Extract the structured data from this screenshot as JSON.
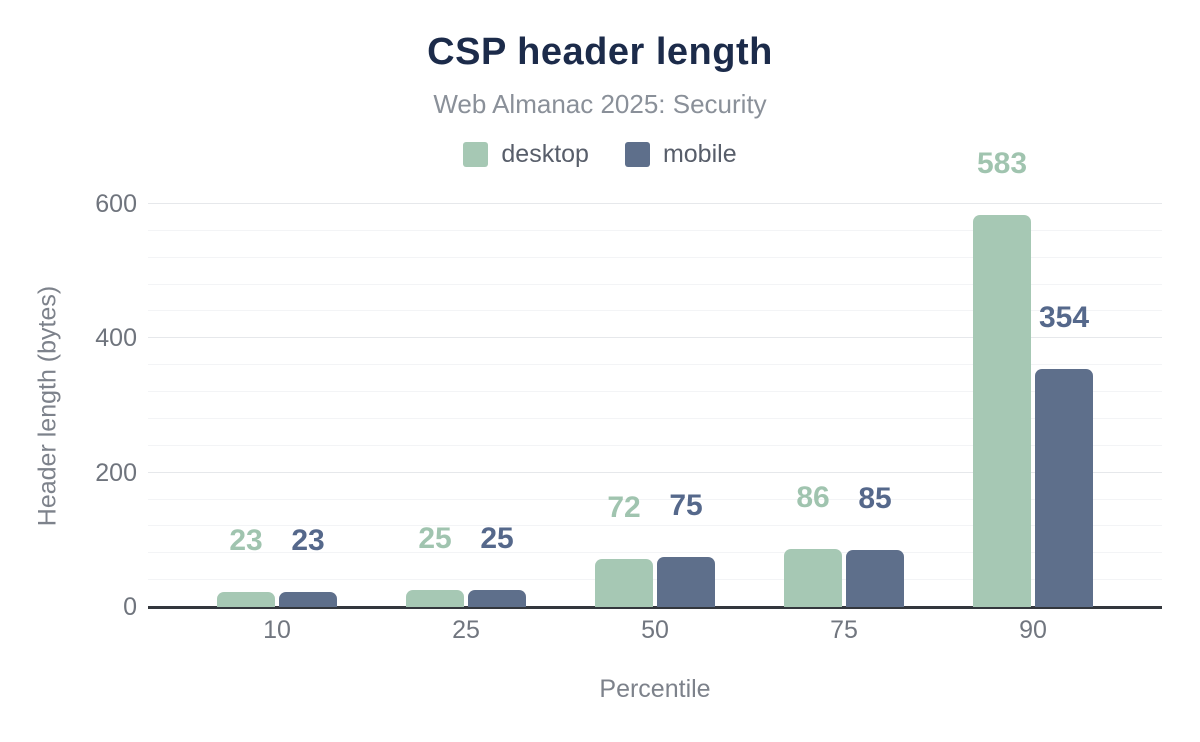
{
  "chart_data": {
    "type": "bar",
    "title": "CSP header length",
    "subtitle": "Web Almanac 2025: Security",
    "xlabel": "Percentile",
    "ylabel": "Header length (bytes)",
    "categories": [
      "10",
      "25",
      "50",
      "75",
      "90"
    ],
    "series": [
      {
        "name": "desktop",
        "color": "#a6c8b4",
        "label_color": "#a0c4af",
        "values": [
          23,
          25,
          72,
          86,
          583
        ]
      },
      {
        "name": "mobile",
        "color": "#5e6f8b",
        "label_color": "#55688b",
        "values": [
          23,
          25,
          75,
          85,
          354
        ]
      }
    ],
    "ylim": [
      0,
      600
    ],
    "yticks": [
      0,
      200,
      400,
      600
    ],
    "minor_grid_step": 40,
    "grid": "on",
    "legend_position": "top"
  },
  "colors": {
    "background": "#ffffff",
    "title": "#1c2b4a",
    "subtitle": "#8a9099",
    "legend_text": "#585e6a",
    "axis_tick_text": "#71767f",
    "axis_title_text": "#7d828b",
    "grid_major": "#e6e8eb",
    "grid_minor": "#f3f4f6",
    "axis_line": "#33373d"
  }
}
